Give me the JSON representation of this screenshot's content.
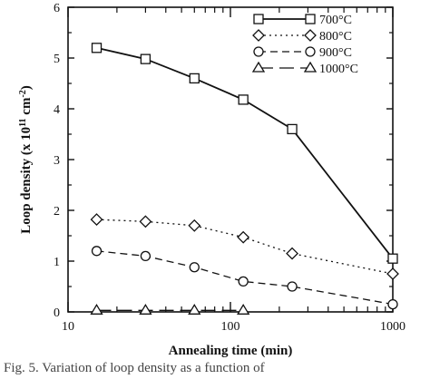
{
  "chart_data": {
    "type": "line",
    "xlabel": "Annealing time (min)",
    "ylabel": "Loop density (x 10^11 cm^-2)",
    "ylabel_parts": {
      "prefix": "Loop density (x 10",
      "exp1": "11",
      "middle": " cm",
      "exp2": "-2",
      "suffix": ")"
    },
    "x_scale": "log",
    "xlim": [
      10,
      1000
    ],
    "ylim": [
      0,
      6
    ],
    "x_tick_labels": [
      "10",
      "100",
      "1000"
    ],
    "x_ticks": [
      10,
      100,
      1000
    ],
    "y_tick_labels": [
      "0",
      "1",
      "2",
      "3",
      "4",
      "5",
      "6"
    ],
    "y_ticks": [
      0,
      1,
      2,
      3,
      4,
      5,
      6
    ],
    "legend_position": "top-right",
    "grid": false,
    "series": [
      {
        "name": "700°C",
        "marker": "square",
        "line": "solid",
        "x": [
          15,
          30,
          60,
          120,
          240,
          1000
        ],
        "y": [
          5.2,
          4.98,
          4.6,
          4.18,
          3.6,
          1.05
        ]
      },
      {
        "name": "800°C",
        "marker": "diamond",
        "line": "dotted",
        "x": [
          15,
          30,
          60,
          120,
          240,
          1000
        ],
        "y": [
          1.82,
          1.78,
          1.7,
          1.47,
          1.15,
          0.75
        ]
      },
      {
        "name": "900°C",
        "marker": "circle",
        "line": "short-dash",
        "x": [
          15,
          30,
          60,
          120,
          240,
          1000
        ],
        "y": [
          1.2,
          1.1,
          0.88,
          0.6,
          0.5,
          0.15
        ]
      },
      {
        "name": "1000°C",
        "marker": "triangle",
        "line": "long-dash",
        "x": [
          15,
          30,
          60,
          120
        ],
        "y": [
          0.03,
          0.03,
          0.03,
          0.03
        ]
      }
    ]
  },
  "caption": "Fig. 5. Variation of loop density as a function of"
}
